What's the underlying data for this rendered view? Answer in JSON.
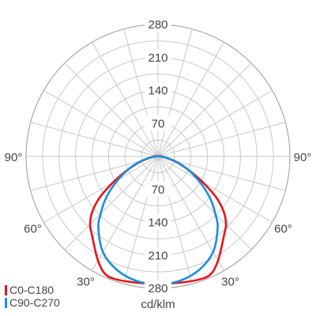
{
  "chart_data": {
    "type": "polar",
    "unit_label": "cd/klm",
    "radial_ticks": [
      70,
      140,
      210,
      280
    ],
    "r_max": 280,
    "angle_labels": {
      "left": [
        "90°",
        "60°",
        "30°"
      ],
      "right": [
        "90°",
        "60°",
        "30°"
      ]
    },
    "angle_step_deg": 15,
    "series": [
      {
        "name": "C0-C180",
        "color": "#e8141b",
        "points": [
          {
            "angle": 0,
            "value": 270
          },
          {
            "angle": 10,
            "value": 272
          },
          {
            "angle": 20,
            "value": 276
          },
          {
            "angle": 25,
            "value": 272
          },
          {
            "angle": 30,
            "value": 255
          },
          {
            "angle": 35,
            "value": 235
          },
          {
            "angle": 40,
            "value": 218
          },
          {
            "angle": 45,
            "value": 204
          },
          {
            "angle": 50,
            "value": 182
          },
          {
            "angle": 55,
            "value": 150
          },
          {
            "angle": 60,
            "value": 110
          },
          {
            "angle": 65,
            "value": 77
          },
          {
            "angle": 70,
            "value": 52
          },
          {
            "angle": 75,
            "value": 33
          },
          {
            "angle": 80,
            "value": 19
          },
          {
            "angle": 85,
            "value": 12
          },
          {
            "angle": 90,
            "value": 8
          },
          {
            "angle": 100,
            "value": 4
          },
          {
            "angle": 110,
            "value": 2
          },
          {
            "angle": 130,
            "value": 1
          },
          {
            "angle": 180,
            "value": 1
          }
        ]
      },
      {
        "name": "C90-C270",
        "color": "#1a8fe0",
        "points": [
          {
            "angle": 0,
            "value": 272
          },
          {
            "angle": 10,
            "value": 268
          },
          {
            "angle": 20,
            "value": 256
          },
          {
            "angle": 30,
            "value": 234
          },
          {
            "angle": 40,
            "value": 197
          },
          {
            "angle": 45,
            "value": 172
          },
          {
            "angle": 50,
            "value": 148
          },
          {
            "angle": 55,
            "value": 122
          },
          {
            "angle": 60,
            "value": 97
          },
          {
            "angle": 65,
            "value": 75
          },
          {
            "angle": 70,
            "value": 55
          },
          {
            "angle": 75,
            "value": 36
          },
          {
            "angle": 80,
            "value": 20
          },
          {
            "angle": 85,
            "value": 9
          },
          {
            "angle": 90,
            "value": 3
          },
          {
            "angle": 110,
            "value": 1
          },
          {
            "angle": 180,
            "value": 1
          }
        ]
      }
    ]
  }
}
